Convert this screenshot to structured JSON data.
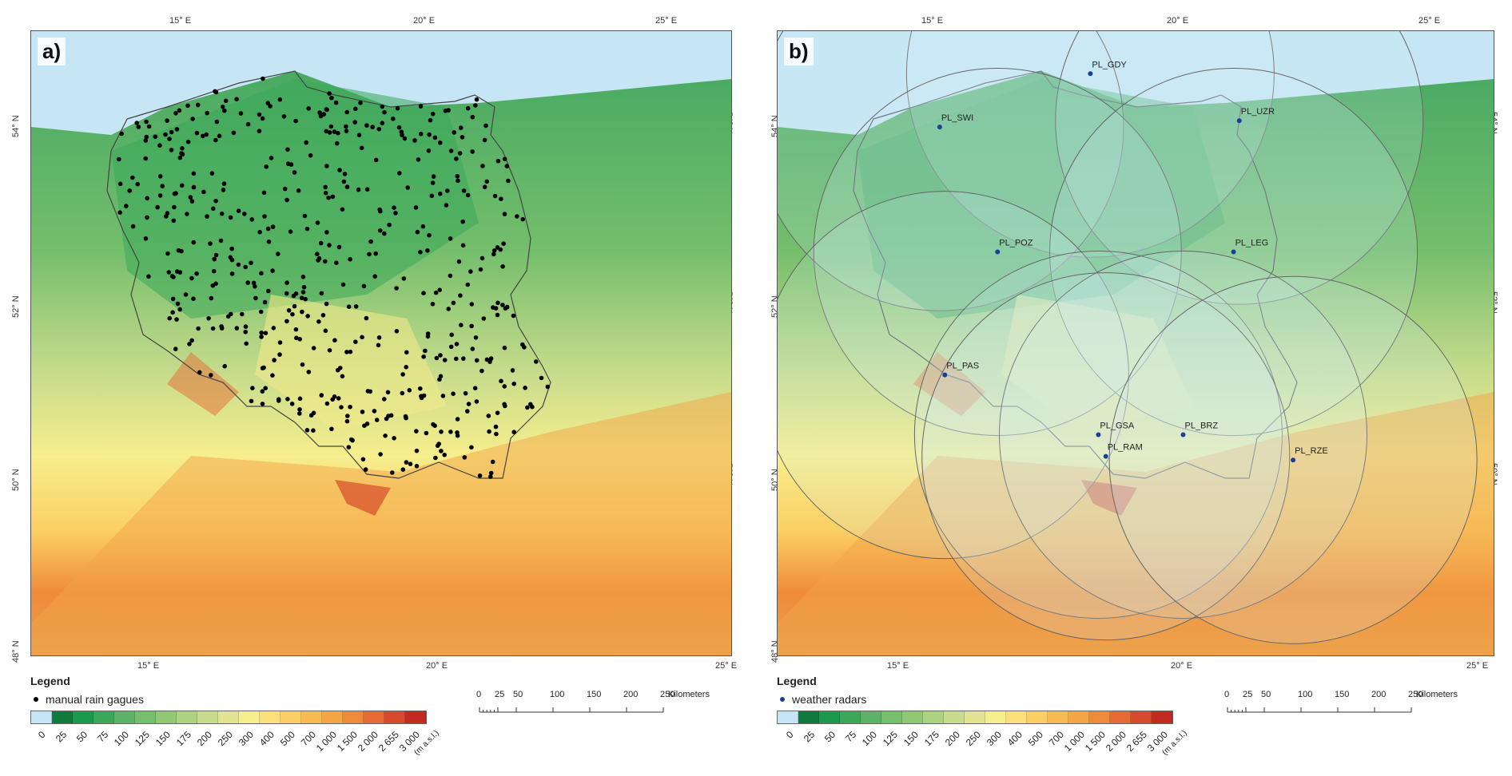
{
  "panels": [
    {
      "label": "a)",
      "legend_title": "Legend",
      "legend_entry": "manual rain gagues",
      "dot_color": "#000000"
    },
    {
      "label": "b)",
      "legend_title": "Legend",
      "legend_entry": "weather radars",
      "dot_color": "#1a3f9a"
    }
  ],
  "lon_ticks": [
    "15° E",
    "20° E",
    "25° E"
  ],
  "lat_ticks": [
    "54° N",
    "52° N",
    "50° N",
    "48° N"
  ],
  "elevation_legend": {
    "colors": [
      "#c6e6f5",
      "#0e7a3e",
      "#1a9a4e",
      "#3aa85a",
      "#5ab366",
      "#74be6c",
      "#92c775",
      "#aed182",
      "#c7dc8c",
      "#e3e48f",
      "#f7ee8d",
      "#fbe07a",
      "#fbcf63",
      "#f9bb4f",
      "#f5a544",
      "#ef8a3a",
      "#e56a33",
      "#d64b2b",
      "#c22b22"
    ],
    "labels": [
      "0",
      "25",
      "50",
      "75",
      "100",
      "125",
      "150",
      "175",
      "200",
      "250",
      "300",
      "400",
      "500",
      "700",
      "1 000",
      "1 500",
      "2 000",
      "2 655",
      "3 000"
    ],
    "unit": "(m a.s.l.)"
  },
  "scale_bar": {
    "ticks": [
      "0",
      "25",
      "50",
      "100",
      "150",
      "200",
      "250"
    ],
    "unit": "Kilometers"
  },
  "radars": [
    {
      "name": "PL_GDY",
      "lon": 18.46,
      "lat": 54.38
    },
    {
      "name": "PL_SWI",
      "lon": 15.83,
      "lat": 53.79
    },
    {
      "name": "PL_UZR",
      "lon": 21.06,
      "lat": 53.86
    },
    {
      "name": "PL_POZ",
      "lon": 16.84,
      "lat": 52.41
    },
    {
      "name": "PL_LEG",
      "lon": 20.96,
      "lat": 52.41
    },
    {
      "name": "PL_PAS",
      "lon": 15.92,
      "lat": 51.05
    },
    {
      "name": "PL_GSA",
      "lon": 18.6,
      "lat": 50.39
    },
    {
      "name": "PL_BRZ",
      "lon": 20.08,
      "lat": 50.39
    },
    {
      "name": "PL_RAM",
      "lon": 18.73,
      "lat": 50.15
    },
    {
      "name": "PL_RZE",
      "lon": 22.0,
      "lat": 50.11
    }
  ]
}
